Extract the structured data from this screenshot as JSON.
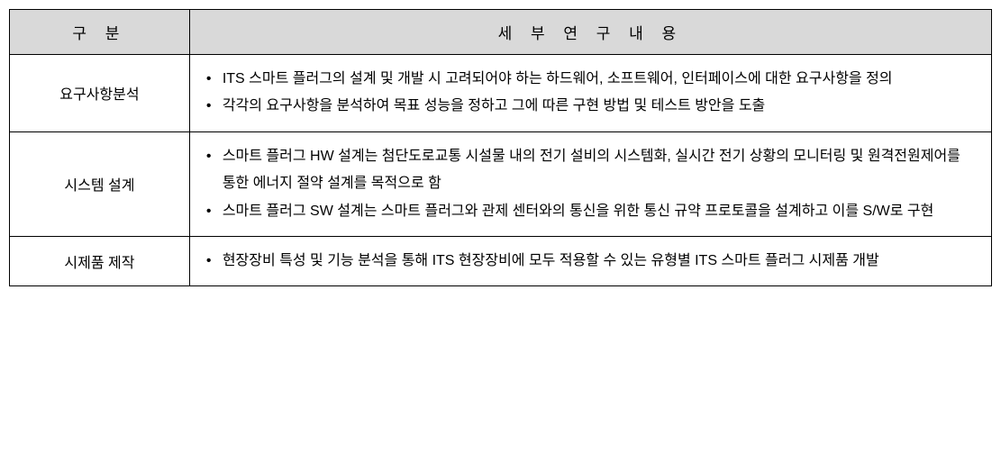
{
  "table": {
    "header": {
      "category": "구 분",
      "content": "세 부 연 구 내 용"
    },
    "rows": [
      {
        "category": "요구사항분석",
        "items": [
          "ITS 스마트 플러그의 설계 및 개발 시 고려되어야 하는 하드웨어, 소프트웨어, 인터페이스에 대한 요구사항을 정의",
          "각각의 요구사항을 분석하여 목표 성능을 정하고 그에 따른 구현 방법 및 테스트 방안을 도출"
        ]
      },
      {
        "category": "시스템 설계",
        "items": [
          "스마트 플러그 HW 설계는 첨단도로교통 시설물 내의 전기 설비의 시스템화, 실시간 전기 상황의 모니터링 및 원격전원제어를 통한 에너지 절약 설계를 목적으로 함",
          "스마트 플러그 SW 설계는 스마트 플러그와 관제 센터와의 통신을 위한 통신 규약 프로토콜을 설계하고 이를 S/W로 구현"
        ]
      },
      {
        "category": "시제품 제작",
        "items": [
          "현장장비 특성 및 기능 분석을 통해 ITS 현장장비에 모두 적용할 수 있는 유형별 ITS 스마트 플러그 시제품 개발"
        ]
      }
    ]
  },
  "styling": {
    "header_bg": "#d9d9d9",
    "border_color": "#000000",
    "body_bg": "#ffffff",
    "font_size_header": 17,
    "font_size_body": 16,
    "col_category_width": 200,
    "col_content_width": 891,
    "line_height": 1.9
  }
}
